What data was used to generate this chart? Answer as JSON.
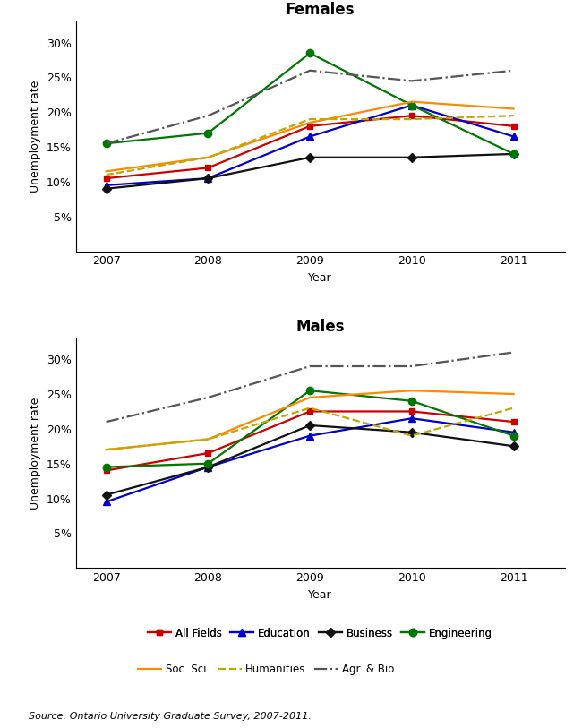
{
  "years": [
    2007,
    2008,
    2009,
    2010,
    2011
  ],
  "females": {
    "All Fields": [
      10.5,
      12.0,
      18.0,
      19.5,
      18.0
    ],
    "Education": [
      9.5,
      10.5,
      16.5,
      21.0,
      16.5
    ],
    "Business": [
      9.0,
      10.5,
      13.5,
      13.5,
      14.0
    ],
    "Engineering": [
      15.5,
      17.0,
      28.5,
      21.0,
      14.0
    ],
    "Soc. Sci.": [
      11.5,
      13.5,
      18.5,
      21.5,
      20.5
    ],
    "Humanities": [
      11.0,
      13.5,
      19.0,
      19.0,
      19.5
    ],
    "Agr. & Bio.": [
      15.5,
      19.5,
      26.0,
      24.5,
      26.0
    ]
  },
  "males": {
    "All Fields": [
      14.0,
      16.5,
      22.5,
      22.5,
      21.0
    ],
    "Education": [
      9.5,
      14.5,
      19.0,
      21.5,
      19.5
    ],
    "Business": [
      10.5,
      14.5,
      20.5,
      19.5,
      17.5
    ],
    "Engineering": [
      14.5,
      15.0,
      25.5,
      24.0,
      19.0
    ],
    "Soc. Sci.": [
      17.0,
      18.5,
      24.5,
      25.5,
      25.0
    ],
    "Humanities": [
      17.0,
      18.5,
      23.0,
      19.0,
      23.0
    ],
    "Agr. & Bio.": [
      21.0,
      24.5,
      29.0,
      29.0,
      31.0
    ]
  },
  "series_styles": {
    "All Fields": {
      "color": "#cc0000",
      "marker": "s",
      "linestyle": "-",
      "markersize": 5
    },
    "Education": {
      "color": "#0000cc",
      "marker": "^",
      "linestyle": "-",
      "markersize": 6
    },
    "Business": {
      "color": "#111111",
      "marker": "D",
      "linestyle": "-",
      "markersize": 5
    },
    "Engineering": {
      "color": "#007700",
      "marker": "o",
      "linestyle": "-",
      "markersize": 6
    },
    "Soc. Sci.": {
      "color": "#ff8800",
      "marker": "None",
      "linestyle": "-",
      "markersize": 5
    },
    "Humanities": {
      "color": "#bbaa00",
      "marker": "None",
      "linestyle": "--",
      "markersize": 5
    },
    "Agr. & Bio.": {
      "color": "#555555",
      "marker": "None",
      "linestyle": "-.",
      "markersize": 5
    }
  },
  "ylim": [
    0,
    33
  ],
  "yticks": [
    5,
    10,
    15,
    20,
    25,
    30
  ],
  "ytick_labels": [
    "5%",
    "10%",
    "15%",
    "20%",
    "25%",
    "30%"
  ],
  "xlabel": "Year",
  "ylabel": "Unemployment rate",
  "title_females": "Females",
  "title_males": "Males",
  "source_text": "Source: Ontario University Graduate Survey, 2007-2011.",
  "legend_row1": [
    "All Fields",
    "Education",
    "Business",
    "Engineering"
  ],
  "legend_row2": [
    "Soc. Sci.",
    "Humanities",
    "Agr. & Bio."
  ],
  "legend_order": [
    "All Fields",
    "Education",
    "Business",
    "Engineering",
    "Soc. Sci.",
    "Humanities",
    "Agr. & Bio."
  ]
}
